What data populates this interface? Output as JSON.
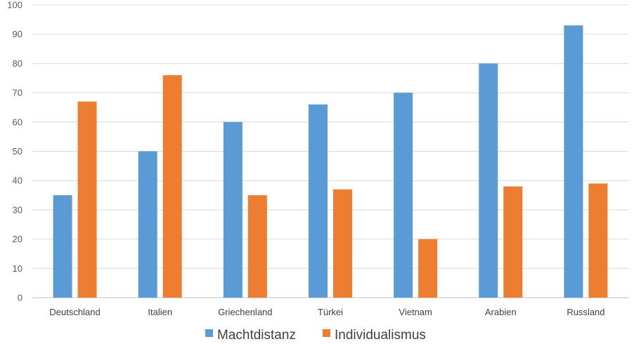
{
  "chart_data": {
    "type": "bar",
    "title": "",
    "xlabel": "",
    "ylabel": "",
    "ylim": [
      0,
      100
    ],
    "yticks": [
      0,
      10,
      20,
      30,
      40,
      50,
      60,
      70,
      80,
      90,
      100
    ],
    "grid": true,
    "legend_position": "bottom",
    "categories": [
      "Deutschland",
      "Italien",
      "Griechenland",
      "Türkei",
      "Vietnam",
      "Arabien",
      "Russland"
    ],
    "series": [
      {
        "name": "Machtdistanz",
        "color": "#5b9bd5",
        "values": [
          35,
          50,
          60,
          66,
          70,
          80,
          93
        ]
      },
      {
        "name": "Individualismus",
        "color": "#ed7d31",
        "values": [
          67,
          76,
          35,
          37,
          20,
          38,
          39
        ]
      }
    ]
  }
}
